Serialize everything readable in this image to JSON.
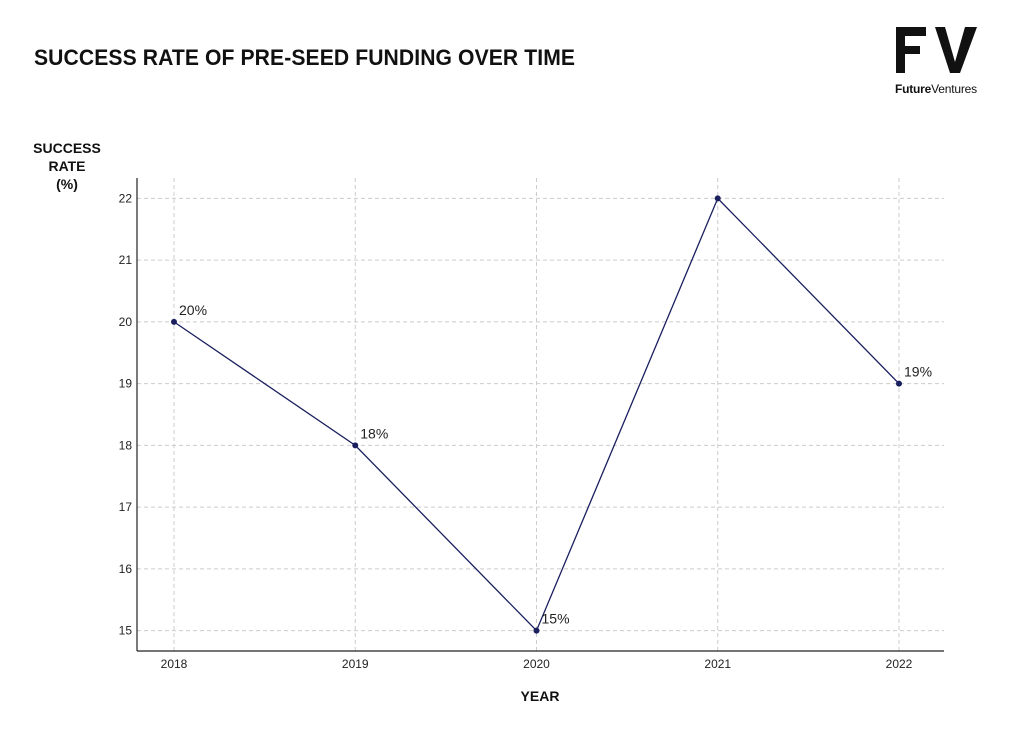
{
  "title": "SUCCESS RATE OF PRE-SEED FUNDING OVER TIME",
  "logo": {
    "mark": "FV",
    "text_primary": "Future",
    "text_secondary": "Ventures",
    "icon": "fv-logo-icon"
  },
  "colors": {
    "line": "#1a1f5e",
    "grid": "#cccccc",
    "axis": "#222222"
  },
  "chart_data": {
    "type": "line",
    "title": "SUCCESS RATE OF PRE-SEED FUNDING OVER TIME",
    "xlabel": "YEAR",
    "ylabel_lines": [
      "SUCCESS",
      "RATE",
      "(%)"
    ],
    "categories": [
      "2018",
      "2019",
      "2020",
      "2021",
      "2022"
    ],
    "series": [
      {
        "values": [
          20,
          18,
          15,
          22,
          19
        ]
      }
    ],
    "data_labels": [
      "20%",
      "18%",
      "15%",
      "",
      "19%"
    ],
    "yticks": [
      15,
      16,
      17,
      18,
      19,
      20,
      21,
      22
    ],
    "ylim": [
      14.67,
      22.33
    ],
    "grid": true,
    "grid_style": "dashed"
  }
}
